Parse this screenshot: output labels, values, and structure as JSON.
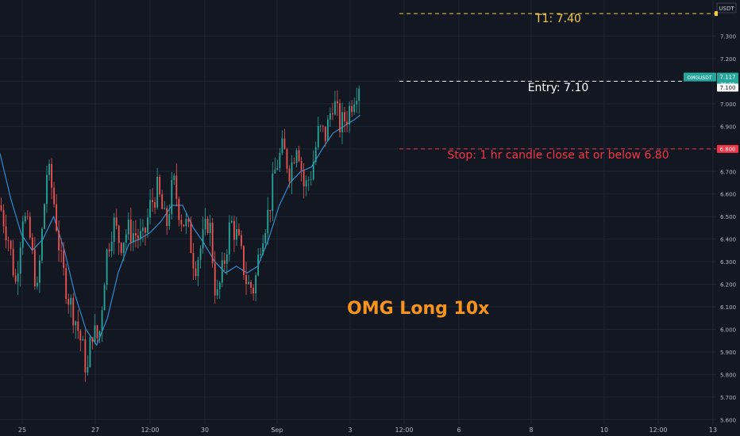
{
  "chart_data": {
    "type": "candlestick",
    "symbol": "OMGUSDT",
    "currency": "USDT",
    "last_price": "7.117",
    "countdown": "36:21",
    "entry_tag": "7.100",
    "stop_tag": "6.800",
    "y_axis": {
      "ylim": [
        5.58,
        7.46
      ],
      "ticks": [
        "7.300",
        "7.200",
        "7.100",
        "7.000",
        "6.900",
        "6.800",
        "6.700",
        "6.600",
        "6.500",
        "6.400",
        "6.300",
        "6.200",
        "6.100",
        "6.000",
        "5.900",
        "5.800",
        "5.700",
        "5.600"
      ]
    },
    "x_axis": {
      "ticks": [
        "25",
        "27",
        "12:00",
        "30",
        "Sep",
        "3",
        "12:00",
        "6",
        "8",
        "10",
        "12:00",
        "13"
      ]
    },
    "grid": true,
    "levels": [
      {
        "name": "target",
        "value": 7.4,
        "label": "T1: 7.40",
        "color": "#f2c94c"
      },
      {
        "name": "entry",
        "value": 7.1,
        "label": "Entry: 7.10",
        "color": "#ffffff"
      },
      {
        "name": "stop",
        "value": 6.8,
        "label": "Stop: 1 hr candle close at or below 6.80",
        "color": "#f23645"
      }
    ],
    "annotation": "OMG Long 10x",
    "price_path": [
      [
        0.0,
        6.55
      ],
      [
        0.012,
        6.4
      ],
      [
        0.022,
        6.2
      ],
      [
        0.032,
        6.52
      ],
      [
        0.042,
        6.4
      ],
      [
        0.052,
        6.16
      ],
      [
        0.066,
        6.72
      ],
      [
        0.074,
        6.6
      ],
      [
        0.085,
        6.3
      ],
      [
        0.095,
        6.15
      ],
      [
        0.105,
        6.05
      ],
      [
        0.115,
        5.92
      ],
      [
        0.122,
        5.8
      ],
      [
        0.128,
        6.0
      ],
      [
        0.138,
        5.95
      ],
      [
        0.148,
        6.32
      ],
      [
        0.158,
        6.48
      ],
      [
        0.168,
        6.38
      ],
      [
        0.178,
        6.44
      ],
      [
        0.19,
        6.42
      ],
      [
        0.2,
        6.39
      ],
      [
        0.21,
        6.55
      ],
      [
        0.22,
        6.62
      ],
      [
        0.232,
        6.45
      ],
      [
        0.242,
        6.66
      ],
      [
        0.252,
        6.5
      ],
      [
        0.262,
        6.45
      ],
      [
        0.272,
        6.28
      ],
      [
        0.282,
        6.38
      ],
      [
        0.292,
        6.5
      ],
      [
        0.302,
        6.12
      ],
      [
        0.312,
        6.28
      ],
      [
        0.322,
        6.48
      ],
      [
        0.332,
        6.4
      ],
      [
        0.345,
        6.2
      ],
      [
        0.355,
        6.18
      ],
      [
        0.365,
        6.42
      ],
      [
        0.375,
        6.52
      ],
      [
        0.385,
        6.72
      ],
      [
        0.395,
        6.8
      ],
      [
        0.405,
        6.7
      ],
      [
        0.415,
        6.85
      ],
      [
        0.425,
        6.62
      ],
      [
        0.435,
        6.7
      ],
      [
        0.445,
        6.88
      ],
      [
        0.455,
        6.86
      ],
      [
        0.465,
        7.02
      ],
      [
        0.475,
        6.9
      ],
      [
        0.485,
        6.95
      ],
      [
        0.495,
        7.05
      ],
      [
        0.503,
        7.11
      ]
    ],
    "ema_path": [
      [
        0.0,
        6.78
      ],
      [
        0.015,
        6.58
      ],
      [
        0.03,
        6.42
      ],
      [
        0.045,
        6.35
      ],
      [
        0.06,
        6.4
      ],
      [
        0.075,
        6.5
      ],
      [
        0.09,
        6.35
      ],
      [
        0.105,
        6.15
      ],
      [
        0.12,
        6.0
      ],
      [
        0.135,
        5.93
      ],
      [
        0.15,
        6.05
      ],
      [
        0.165,
        6.25
      ],
      [
        0.18,
        6.38
      ],
      [
        0.195,
        6.4
      ],
      [
        0.21,
        6.43
      ],
      [
        0.225,
        6.48
      ],
      [
        0.24,
        6.55
      ],
      [
        0.255,
        6.55
      ],
      [
        0.27,
        6.45
      ],
      [
        0.285,
        6.38
      ],
      [
        0.3,
        6.3
      ],
      [
        0.315,
        6.25
      ],
      [
        0.33,
        6.28
      ],
      [
        0.345,
        6.25
      ],
      [
        0.36,
        6.28
      ],
      [
        0.375,
        6.4
      ],
      [
        0.39,
        6.55
      ],
      [
        0.405,
        6.65
      ],
      [
        0.42,
        6.7
      ],
      [
        0.435,
        6.72
      ],
      [
        0.45,
        6.8
      ],
      [
        0.465,
        6.87
      ],
      [
        0.48,
        6.9
      ],
      [
        0.495,
        6.93
      ],
      [
        0.503,
        6.95
      ]
    ],
    "candle_count": 150,
    "colors": {
      "up": "#26a69a",
      "down": "#ef5350",
      "ema": "#2e8ccf",
      "grid": "#1f2433",
      "axis_text": "#b2b5be",
      "background": "#131722",
      "annotation": "#f7941d",
      "price_tag": "#26a69a",
      "stop_tag": "#f23645"
    }
  }
}
